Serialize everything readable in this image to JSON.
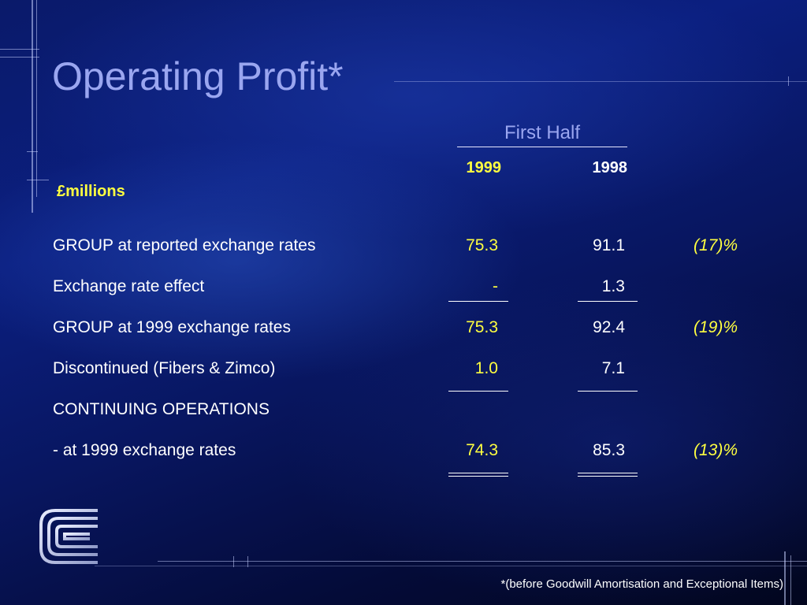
{
  "title": "Operating Profit*",
  "header": {
    "period": "First Half",
    "year_current": "1999",
    "year_prior": "1998",
    "units": "£millions"
  },
  "rows": [
    {
      "label": "GROUP at reported exchange rates",
      "v1999": "75.3",
      "v1998": "91.1",
      "change": "(17)%"
    },
    {
      "label": "Exchange rate effect",
      "v1999": "-",
      "v1998": "1.3",
      "change": ""
    },
    {
      "label": "GROUP at 1999 exchange rates",
      "v1999": "75.3",
      "v1998": "92.4",
      "change": "(19)%"
    },
    {
      "label": "Discontinued (Fibers & Zimco)",
      "v1999": "1.0",
      "v1998": "7.1",
      "change": ""
    },
    {
      "label": "CONTINUING OPERATIONS",
      "v1999": "",
      "v1998": "",
      "change": ""
    },
    {
      "label": "- at 1999 exchange rates",
      "v1999": "74.3",
      "v1998": "85.3",
      "change": "(13)%"
    }
  ],
  "footnote": "*(before Goodwill Amortisation and Exceptional Items)",
  "logo": {
    "icon": "company-c-logo-icon"
  },
  "colors": {
    "title": "#9aa6f0",
    "highlight": "#ffff40",
    "text": "#ffffff"
  }
}
